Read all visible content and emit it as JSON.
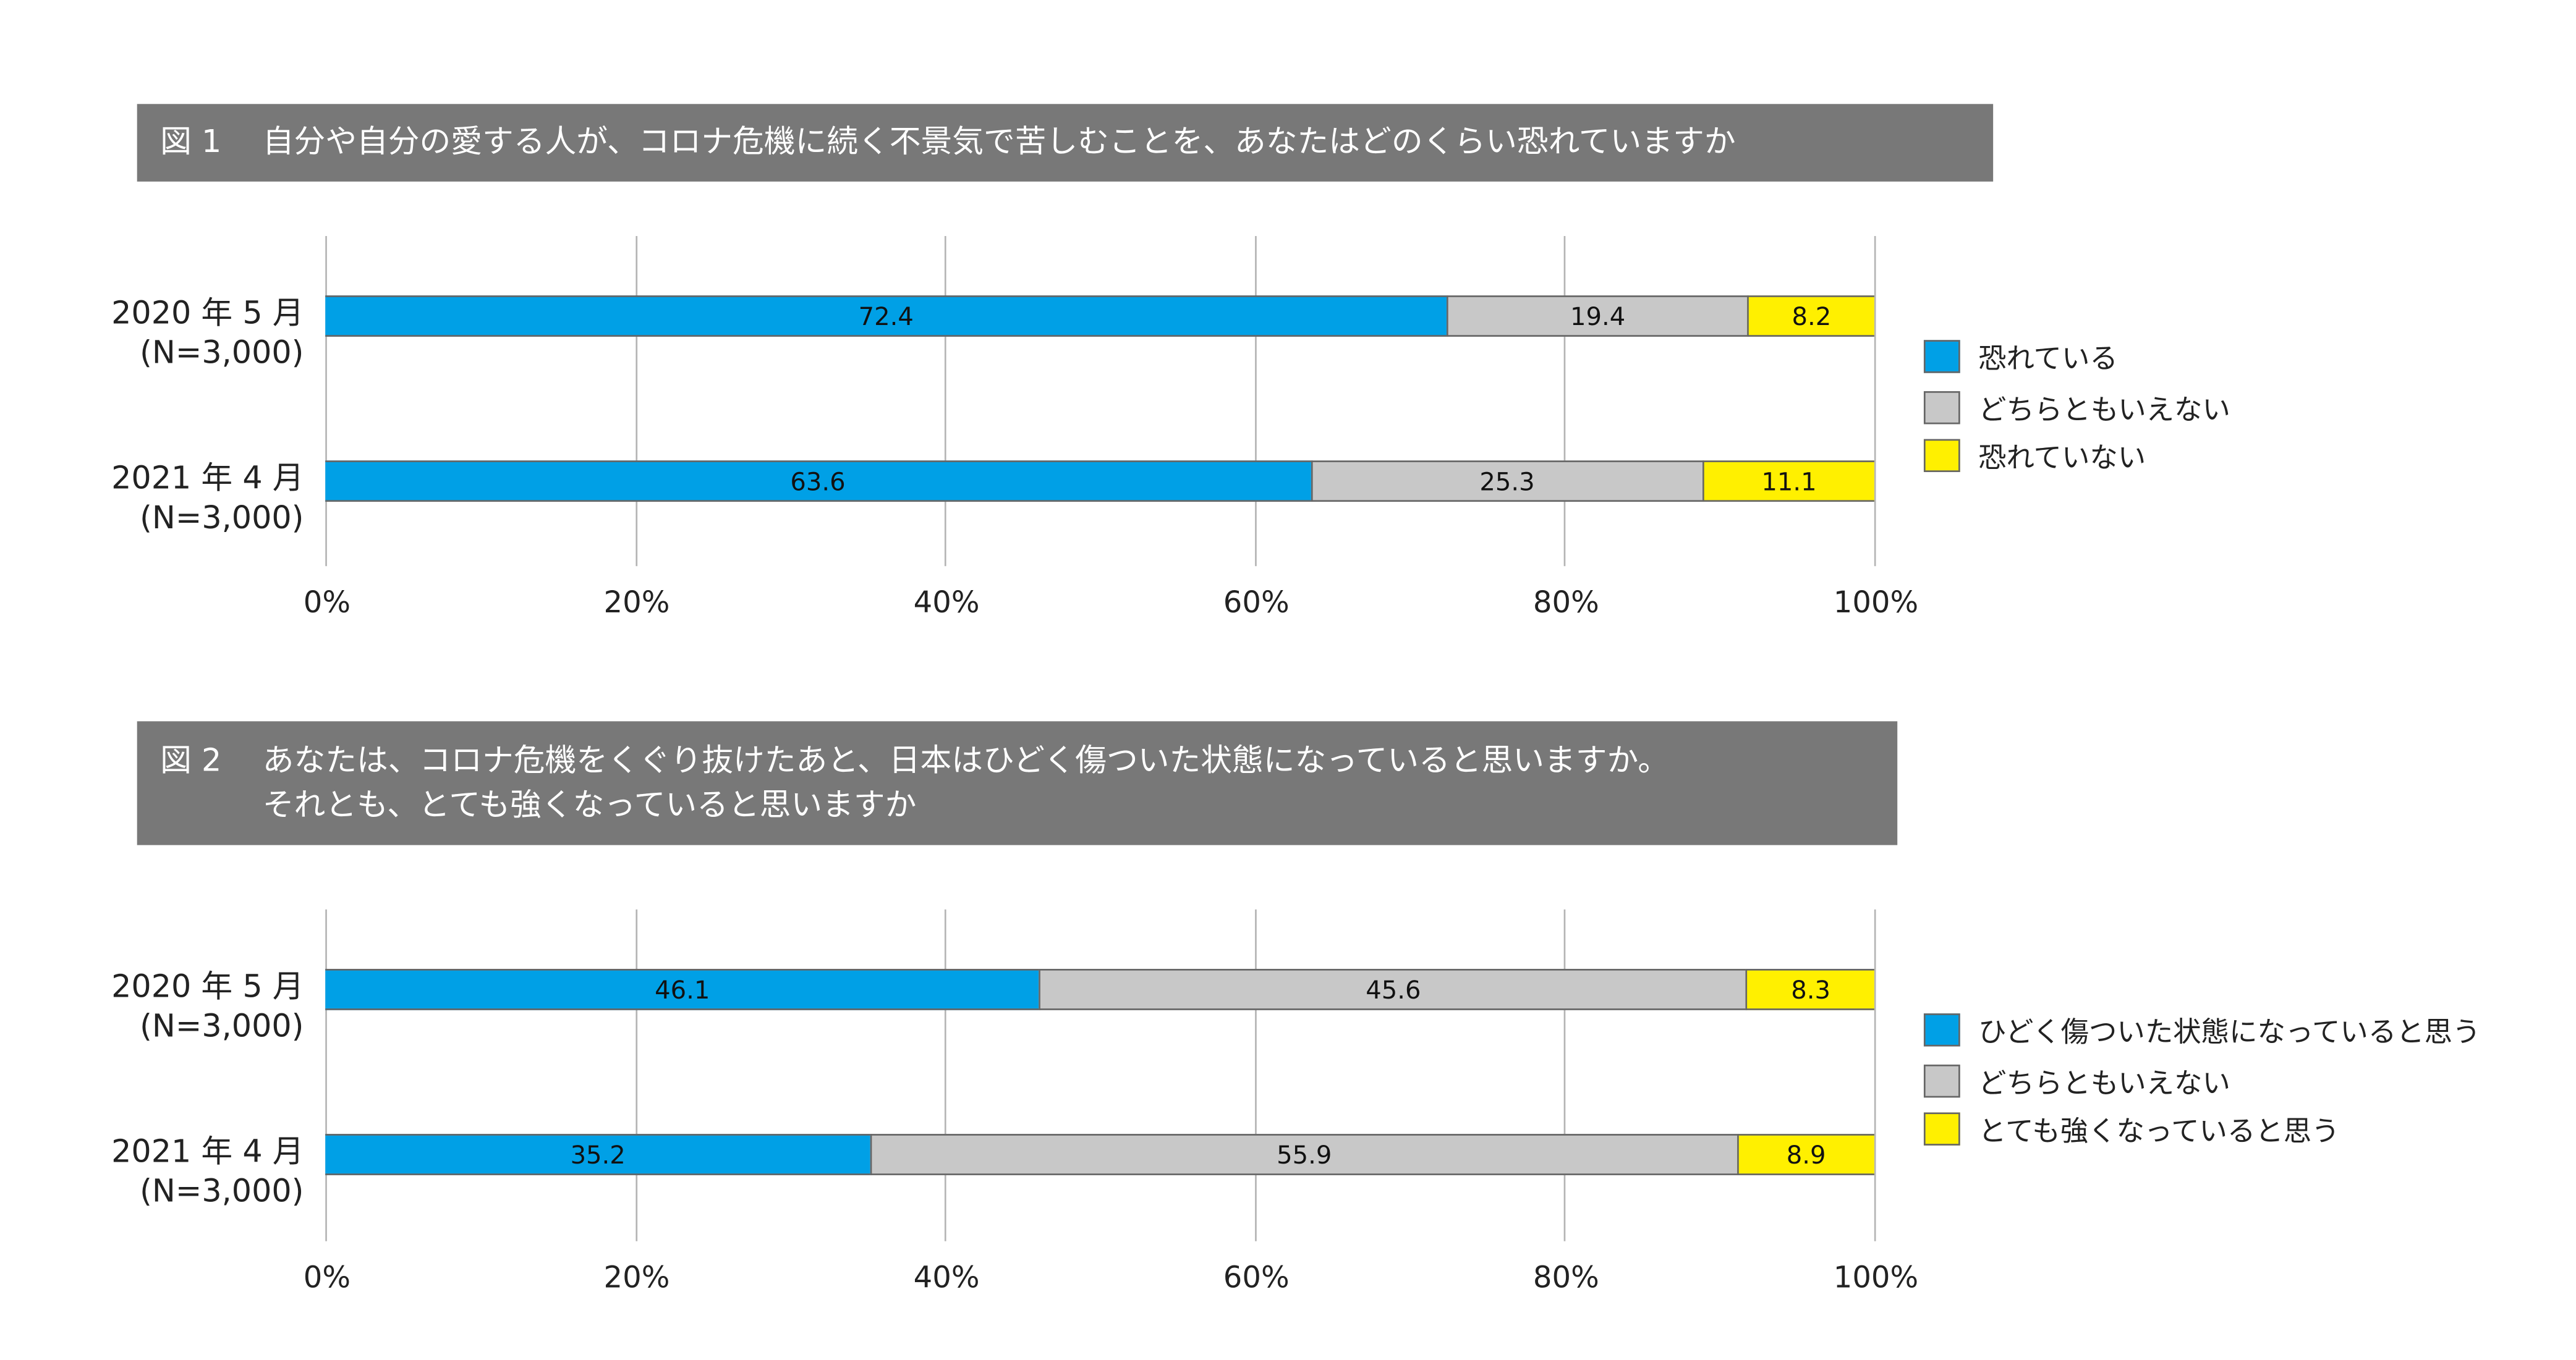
{
  "chart_data": [
    {
      "type": "bar",
      "stacked": true,
      "orientation": "horizontal",
      "title_number": "図 1",
      "title": "自分や自分の愛する人が、コロナ危機に続く不景気で苦しむことを、あなたはどのくらい恐れていますか",
      "title_line2": "",
      "categories": [
        {
          "label": "2020 年 5 月",
          "n": "(N=3,000)"
        },
        {
          "label": "2021 年 4 月",
          "n": "(N=3,000)"
        }
      ],
      "series": [
        {
          "name": "恐れている",
          "color": "#00a0e6",
          "values": [
            72.4,
            63.6
          ]
        },
        {
          "name": "どちらともいえない",
          "color": "#c8c8c8",
          "values": [
            19.4,
            25.3
          ]
        },
        {
          "name": "恐れていない",
          "color": "#fff000",
          "values": [
            8.2,
            11.1
          ]
        }
      ],
      "xlim": [
        0,
        100
      ],
      "xticks": [
        "0%",
        "20%",
        "40%",
        "60%",
        "80%",
        "100%"
      ],
      "legend": "right",
      "grid": true
    },
    {
      "type": "bar",
      "stacked": true,
      "orientation": "horizontal",
      "title_number": "図 2",
      "title": "あなたは、コロナ危機をくぐり抜けたあと、日本はひどく傷ついた状態になっていると思いますか。",
      "title_line2": "それとも、とても強くなっていると思いますか",
      "categories": [
        {
          "label": "2020 年 5 月",
          "n": "(N=3,000)"
        },
        {
          "label": "2021 年 4 月",
          "n": "(N=3,000)"
        }
      ],
      "series": [
        {
          "name": "ひどく傷ついた状態になっていると思う",
          "color": "#00a0e6",
          "values": [
            46.1,
            35.2
          ]
        },
        {
          "name": "どちらともいえない",
          "color": "#c8c8c8",
          "values": [
            45.6,
            55.9
          ]
        },
        {
          "name": "とても強くなっていると思う",
          "color": "#fff000",
          "values": [
            8.3,
            8.9
          ]
        }
      ],
      "xlim": [
        0,
        100
      ],
      "xticks": [
        "0%",
        "20%",
        "40%",
        "60%",
        "80%",
        "100%"
      ],
      "legend": "right",
      "grid": true
    }
  ]
}
